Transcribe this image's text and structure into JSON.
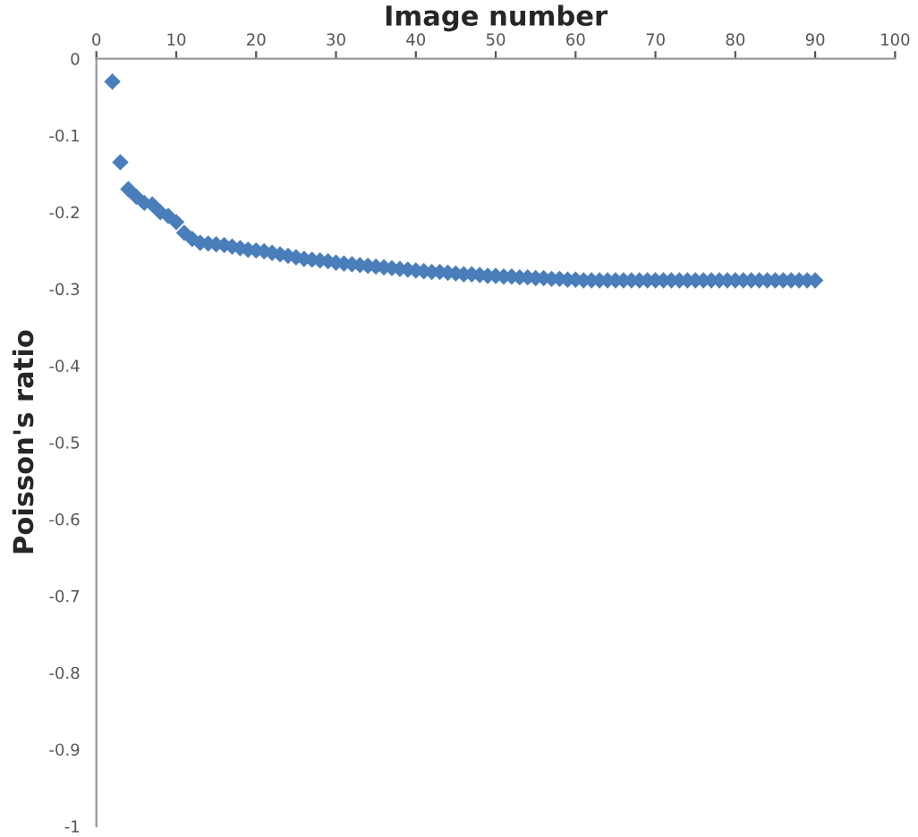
{
  "chart_data": {
    "type": "scatter",
    "xlabel": "Image number",
    "ylabel": "Poisson's ratio",
    "x": [
      2,
      3,
      4,
      5,
      6,
      7,
      8,
      9,
      10,
      11,
      12,
      13,
      14,
      15,
      16,
      17,
      18,
      19,
      20,
      21,
      22,
      23,
      24,
      25,
      26,
      27,
      28,
      29,
      30,
      31,
      32,
      33,
      34,
      35,
      36,
      37,
      38,
      39,
      40,
      41,
      42,
      43,
      44,
      45,
      46,
      47,
      48,
      49,
      50,
      51,
      52,
      53,
      54,
      55,
      56,
      57,
      58,
      59,
      60,
      61,
      62,
      63,
      64,
      65,
      66,
      67,
      68,
      69,
      70,
      71,
      72,
      73,
      74,
      75,
      76,
      77,
      78,
      79,
      80,
      81,
      82,
      83,
      84,
      85,
      86,
      87,
      88,
      89,
      90
    ],
    "values": [
      -0.03,
      -0.135,
      -0.17,
      -0.18,
      -0.188,
      -0.19,
      -0.2,
      -0.205,
      -0.213,
      -0.227,
      -0.235,
      -0.24,
      -0.241,
      -0.242,
      -0.243,
      -0.245,
      -0.247,
      -0.249,
      -0.25,
      -0.251,
      -0.253,
      -0.255,
      -0.257,
      -0.259,
      -0.261,
      -0.262,
      -0.263,
      -0.264,
      -0.266,
      -0.267,
      -0.268,
      -0.269,
      -0.27,
      -0.271,
      -0.272,
      -0.273,
      -0.274,
      -0.275,
      -0.276,
      -0.277,
      -0.278,
      -0.278,
      -0.279,
      -0.28,
      -0.281,
      -0.281,
      -0.282,
      -0.283,
      -0.283,
      -0.284,
      -0.284,
      -0.285,
      -0.285,
      -0.286,
      -0.286,
      -0.287,
      -0.287,
      -0.288,
      -0.288,
      -0.289,
      -0.289,
      -0.289,
      -0.289,
      -0.289,
      -0.289,
      -0.289,
      -0.289,
      -0.289,
      -0.289,
      -0.289,
      -0.289,
      -0.289,
      -0.289,
      -0.289,
      -0.289,
      -0.289,
      -0.289,
      -0.289,
      -0.289,
      -0.289,
      -0.289,
      -0.289,
      -0.289,
      -0.289,
      -0.289,
      -0.289,
      -0.289,
      -0.289,
      -0.289
    ],
    "color": "#4a7ebb",
    "marker": "diamond",
    "xlim": [
      0,
      100
    ],
    "xticks": [
      0,
      10,
      20,
      30,
      40,
      50,
      60,
      70,
      80,
      90,
      100
    ],
    "ylim": [
      -1,
      0
    ],
    "yticks": [
      0,
      -0.1,
      -0.2,
      -0.3,
      -0.4,
      -0.5,
      -0.6,
      -0.7,
      -0.8,
      -0.9,
      -1
    ],
    "grid": false,
    "legend": false
  }
}
